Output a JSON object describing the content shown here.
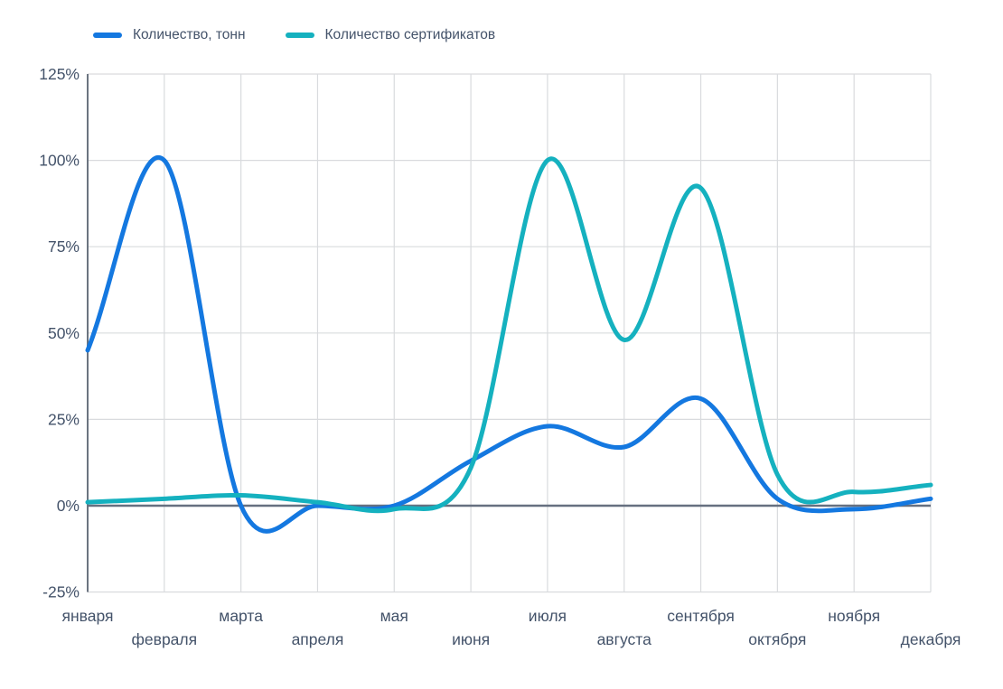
{
  "legend": {
    "items": [
      {
        "label": "Количество, тонн",
        "color": "#1478e0"
      },
      {
        "label": "Количество сертификатов",
        "color": "#15b1bf"
      }
    ]
  },
  "colors": {
    "background": "#ffffff",
    "grid": "#d9dbde",
    "axis_line": "#6b7480",
    "zero_line": "#667080",
    "text": "#44536a",
    "series_tons": "#1478e0",
    "series_certificates": "#15b1bf"
  },
  "chart_data": {
    "type": "line",
    "smoothing": "catmull-rom",
    "categories": [
      "января",
      "февраля",
      "марта",
      "апреля",
      "мая",
      "июня",
      "июля",
      "августа",
      "сентября",
      "октября",
      "ноября",
      "декабря"
    ],
    "series": [
      {
        "name": "Количество, тонн",
        "color": "#1478e0",
        "values": [
          45,
          100,
          0,
          0,
          0,
          13,
          23,
          17,
          31,
          2,
          -1,
          2
        ]
      },
      {
        "name": "Количество сертификатов",
        "color": "#15b1bf",
        "values": [
          1,
          2,
          3,
          1,
          -1,
          11,
          100,
          48,
          92,
          9,
          4,
          6
        ]
      }
    ],
    "ylim": [
      -25,
      125
    ],
    "yticks": [
      125,
      100,
      75,
      50,
      25,
      0,
      -25
    ],
    "ytick_labels": [
      "125%",
      "100%",
      "75%",
      "50%",
      "25%",
      "0%",
      "-25%"
    ],
    "unit": "%",
    "grid": true,
    "legend_position": "top-left"
  }
}
